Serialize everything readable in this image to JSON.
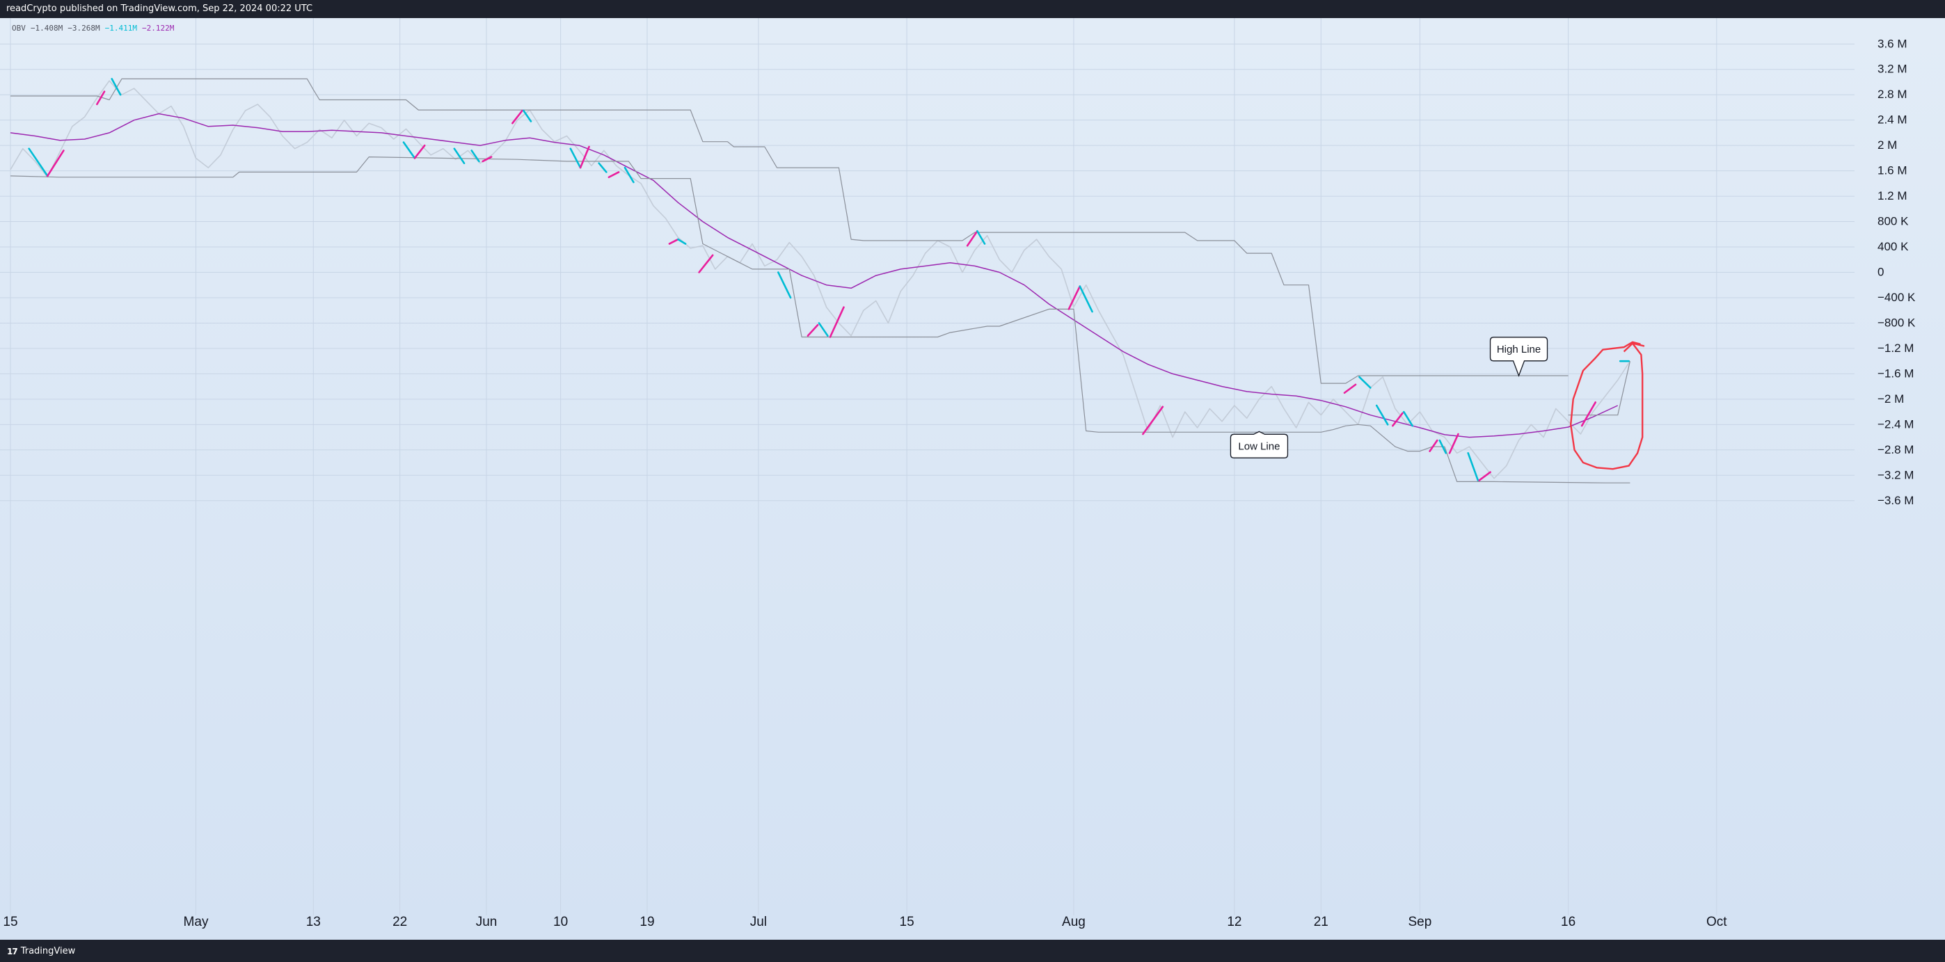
{
  "header": {
    "published_text": "readCrypto published on TradingView.com, Sep 22, 2024 00:22 UTC"
  },
  "legend": {
    "name": "OBV",
    "v1": "−1.408M",
    "v2": "−3.268M",
    "v3": "−1.411M",
    "v4": "−2.122M"
  },
  "footer": {
    "brand": "TradingView",
    "logo_mark": "17"
  },
  "colors": {
    "obv": "#c3ccd8",
    "signal": "#9c27b0",
    "channel": "#8a8f99",
    "segment_up": "#e91e9c",
    "segment_down": "#00bcd4",
    "highlight": "#f23645",
    "callout_border": "#131722"
  },
  "chart_data": {
    "type": "line",
    "title": "",
    "xlabel": "",
    "ylabel": "",
    "ylim": [
      -4.0,
      3.9
    ],
    "x_range": [
      0,
      150
    ],
    "y_ticks": [
      3.6,
      3.2,
      2.8,
      2.4,
      2.0,
      1.6,
      1.2,
      0.8,
      0.4,
      0,
      -0.4,
      -0.8,
      -1.2,
      -1.6,
      -2.0,
      -2.4,
      -2.8,
      -3.2,
      -3.6
    ],
    "y_tick_labels": [
      "3.6 M",
      "3.2 M",
      "2.8 M",
      "2.4 M",
      "2 M",
      "1.6 M",
      "1.2 M",
      "800 K",
      "400 K",
      "0",
      "−400 K",
      "−800 K",
      "−1.2 M",
      "−1.6 M",
      "−2 M",
      "−2.4 M",
      "−2.8 M",
      "−3.2 M",
      "−3.6 M"
    ],
    "x_ticks": [
      {
        "x": 0,
        "label": "15"
      },
      {
        "x": 15,
        "label": "May"
      },
      {
        "x": 24.5,
        "label": "13"
      },
      {
        "x": 31.5,
        "label": "22"
      },
      {
        "x": 38.5,
        "label": "Jun"
      },
      {
        "x": 44.5,
        "label": "10"
      },
      {
        "x": 51.5,
        "label": "19"
      },
      {
        "x": 60.5,
        "label": "Jul"
      },
      {
        "x": 72.5,
        "label": "15"
      },
      {
        "x": 86,
        "label": "Aug"
      },
      {
        "x": 99,
        "label": "12"
      },
      {
        "x": 106,
        "label": "21"
      },
      {
        "x": 114,
        "label": "Sep"
      },
      {
        "x": 126,
        "label": "16"
      },
      {
        "x": 138,
        "label": "Oct"
      }
    ],
    "annotations": [
      {
        "text": "Low Line",
        "x": 101,
        "y": -2.74,
        "anchor_y": -2.51,
        "pointer": "up"
      },
      {
        "text": "High Line",
        "x": 122,
        "y": -1.21,
        "anchor_y": -1.63,
        "pointer": "down"
      }
    ],
    "series": [
      {
        "role": "obv",
        "x": [
          0,
          1,
          2,
          3,
          4,
          5,
          6,
          7,
          8,
          9,
          10,
          11,
          12,
          13,
          14,
          15,
          16,
          17,
          18,
          19,
          20,
          21,
          22,
          23,
          24,
          25,
          26,
          27,
          28,
          29,
          30,
          31,
          32,
          33,
          34,
          35,
          36,
          37,
          38,
          39,
          40,
          41,
          42,
          43,
          44,
          45,
          46,
          47,
          48,
          49,
          50,
          51,
          52,
          53,
          54,
          55,
          56,
          57,
          58,
          59,
          60,
          61,
          62,
          63,
          64,
          65,
          66,
          67,
          68,
          69,
          70,
          71,
          72,
          73,
          74,
          75,
          76,
          77,
          78,
          79,
          80,
          81,
          82,
          83,
          84,
          85,
          86,
          87,
          88,
          89,
          90,
          91,
          92,
          93,
          94,
          95,
          96,
          97,
          98,
          99,
          100,
          101,
          102,
          103,
          104,
          105,
          106,
          107,
          108,
          109,
          110,
          111,
          112,
          113,
          114,
          115,
          116,
          117,
          118,
          119,
          120,
          121,
          122,
          123,
          124,
          125,
          126,
          127,
          128,
          129,
          130,
          131
        ],
        "y": [
          1.62,
          1.95,
          1.75,
          1.5,
          1.9,
          2.3,
          2.45,
          2.75,
          3.02,
          2.8,
          2.9,
          2.7,
          2.5,
          2.62,
          2.3,
          1.8,
          1.65,
          1.85,
          2.25,
          2.55,
          2.65,
          2.45,
          2.15,
          1.95,
          2.05,
          2.25,
          2.12,
          2.4,
          2.15,
          2.35,
          2.28,
          2.1,
          2.26,
          2.05,
          1.85,
          1.95,
          1.78,
          1.92,
          1.72,
          1.86,
          2.06,
          2.4,
          2.56,
          2.25,
          2.06,
          2.15,
          1.92,
          1.68,
          1.92,
          1.68,
          1.53,
          1.4,
          1.05,
          0.85,
          0.55,
          0.38,
          0.42,
          0.05,
          0.25,
          0.15,
          0.45,
          0.1,
          0.2,
          0.47,
          0.25,
          -0.05,
          -0.55,
          -0.8,
          -1.0,
          -0.6,
          -0.45,
          -0.8,
          -0.3,
          -0.05,
          0.3,
          0.5,
          0.4,
          0.0,
          0.35,
          0.58,
          0.2,
          0.0,
          0.35,
          0.52,
          0.25,
          0.05,
          -0.55,
          -0.2,
          -0.6,
          -0.95,
          -1.3,
          -1.9,
          -2.5,
          -2.1,
          -2.6,
          -2.2,
          -2.45,
          -2.15,
          -2.35,
          -2.1,
          -2.3,
          -2.0,
          -1.8,
          -2.15,
          -2.45,
          -2.05,
          -2.25,
          -2.0,
          -2.2,
          -2.4,
          -1.82,
          -1.65,
          -2.15,
          -2.4,
          -2.2,
          -2.5,
          -2.6,
          -2.85,
          -2.75,
          -3.0,
          -3.25,
          -3.05,
          -2.65,
          -2.4,
          -2.6,
          -2.15,
          -2.35,
          -2.55,
          -2.2,
          -1.95,
          -1.7,
          -1.4
        ]
      },
      {
        "role": "signal",
        "x": [
          0,
          2,
          4,
          6,
          8,
          10,
          12,
          14,
          16,
          18,
          20,
          22,
          24,
          26,
          28,
          30,
          32,
          34,
          36,
          38,
          40,
          42,
          44,
          46,
          48,
          50,
          52,
          54,
          56,
          58,
          60,
          62,
          64,
          66,
          68,
          70,
          72,
          74,
          76,
          78,
          80,
          82,
          84,
          86,
          88,
          90,
          92,
          94,
          96,
          98,
          100,
          102,
          104,
          106,
          108,
          110,
          112,
          114,
          116,
          118,
          120,
          122,
          124,
          126,
          128,
          130
        ],
        "y": [
          2.2,
          2.15,
          2.08,
          2.1,
          2.2,
          2.4,
          2.5,
          2.43,
          2.3,
          2.32,
          2.28,
          2.22,
          2.22,
          2.24,
          2.22,
          2.2,
          2.15,
          2.1,
          2.05,
          2.0,
          2.08,
          2.12,
          2.05,
          2.0,
          1.85,
          1.65,
          1.45,
          1.1,
          0.8,
          0.55,
          0.35,
          0.15,
          -0.05,
          -0.2,
          -0.25,
          -0.05,
          0.05,
          0.1,
          0.15,
          0.1,
          0.0,
          -0.2,
          -0.5,
          -0.75,
          -1.0,
          -1.25,
          -1.45,
          -1.6,
          -1.7,
          -1.8,
          -1.88,
          -1.92,
          -1.95,
          -2.02,
          -2.12,
          -2.25,
          -2.35,
          -2.45,
          -2.56,
          -2.6,
          -2.58,
          -2.55,
          -2.5,
          -2.44,
          -2.28,
          -2.1
        ]
      },
      {
        "role": "high-channel",
        "x": [
          0,
          7,
          8,
          9,
          24,
          24.5,
          25,
          32,
          33,
          55,
          56,
          58,
          58.5,
          61,
          62,
          67,
          68,
          69,
          77,
          78,
          95,
          96,
          99,
          100,
          102,
          103,
          105,
          106,
          107,
          108,
          109,
          110,
          122,
          126
        ],
        "y": [
          2.78,
          2.78,
          2.72,
          3.05,
          3.05,
          2.88,
          2.72,
          2.72,
          2.56,
          2.56,
          2.06,
          2.06,
          1.98,
          1.98,
          1.65,
          1.65,
          0.52,
          0.5,
          0.5,
          0.63,
          0.63,
          0.5,
          0.5,
          0.3,
          0.3,
          -0.2,
          -0.2,
          -1.75,
          -1.75,
          -1.75,
          -1.63,
          -1.63,
          -1.63,
          -1.63
        ]
      },
      {
        "role": "low-channel",
        "x": [
          0,
          4,
          18,
          18.5,
          28,
          29,
          41,
          45,
          50,
          51,
          55,
          56,
          60,
          63,
          64,
          75,
          76,
          79,
          80,
          84,
          86,
          87,
          88,
          106,
          107,
          108,
          109,
          110,
          112,
          113,
          114,
          115,
          116,
          117,
          118,
          119,
          120,
          129,
          131
        ],
        "y": [
          1.52,
          1.5,
          1.5,
          1.58,
          1.58,
          1.82,
          1.78,
          1.75,
          1.75,
          1.48,
          1.48,
          0.45,
          0.05,
          0.05,
          -1.02,
          -1.02,
          -0.95,
          -0.85,
          -0.85,
          -0.58,
          -0.58,
          -2.5,
          -2.52,
          -2.52,
          -2.48,
          -2.42,
          -2.4,
          -2.42,
          -2.75,
          -2.82,
          -2.82,
          -2.75,
          -2.75,
          -3.3,
          -3.3,
          -3.3,
          -3.3,
          -3.32,
          -3.32
        ]
      },
      {
        "role": "entry-channel",
        "x": [
          126,
          130,
          131
        ],
        "y": [
          -2.25,
          -2.25,
          -1.4
        ]
      }
    ],
    "segments": [
      {
        "c": "down",
        "x1": 1.5,
        "y1": 1.95,
        "x2": 3,
        "y2": 1.52
      },
      {
        "c": "up",
        "x1": 3,
        "y1": 1.52,
        "x2": 4.3,
        "y2": 1.92
      },
      {
        "c": "up",
        "x1": 7,
        "y1": 2.65,
        "x2": 7.6,
        "y2": 2.85
      },
      {
        "c": "down",
        "x1": 8.2,
        "y1": 3.05,
        "x2": 8.9,
        "y2": 2.8
      },
      {
        "c": "down",
        "x1": 31.8,
        "y1": 2.05,
        "x2": 32.7,
        "y2": 1.8
      },
      {
        "c": "up",
        "x1": 32.7,
        "y1": 1.8,
        "x2": 33.5,
        "y2": 2.0
      },
      {
        "c": "down",
        "x1": 35.9,
        "y1": 1.95,
        "x2": 36.7,
        "y2": 1.72
      },
      {
        "c": "down",
        "x1": 37.3,
        "y1": 1.92,
        "x2": 37.9,
        "y2": 1.75
      },
      {
        "c": "up",
        "x1": 38.2,
        "y1": 1.75,
        "x2": 38.9,
        "y2": 1.82
      },
      {
        "c": "up",
        "x1": 40.6,
        "y1": 2.35,
        "x2": 41.4,
        "y2": 2.55
      },
      {
        "c": "down",
        "x1": 41.5,
        "y1": 2.55,
        "x2": 42.1,
        "y2": 2.38
      },
      {
        "c": "down",
        "x1": 45.3,
        "y1": 1.95,
        "x2": 46.1,
        "y2": 1.65
      },
      {
        "c": "up",
        "x1": 46.1,
        "y1": 1.65,
        "x2": 46.8,
        "y2": 1.98
      },
      {
        "c": "down",
        "x1": 47.6,
        "y1": 1.72,
        "x2": 48.2,
        "y2": 1.58
      },
      {
        "c": "up",
        "x1": 48.4,
        "y1": 1.5,
        "x2": 49.2,
        "y2": 1.58
      },
      {
        "c": "down",
        "x1": 49.7,
        "y1": 1.65,
        "x2": 50.4,
        "y2": 1.42
      },
      {
        "c": "up",
        "x1": 53.3,
        "y1": 0.45,
        "x2": 54,
        "y2": 0.52
      },
      {
        "c": "down",
        "x1": 54,
        "y1": 0.52,
        "x2": 54.6,
        "y2": 0.45
      },
      {
        "c": "up",
        "x1": 55.7,
        "y1": 0.0,
        "x2": 56.8,
        "y2": 0.27
      },
      {
        "c": "down",
        "x1": 62.1,
        "y1": 0.0,
        "x2": 63.1,
        "y2": -0.4
      },
      {
        "c": "up",
        "x1": 64.5,
        "y1": -1.0,
        "x2": 65.3,
        "y2": -0.83
      },
      {
        "c": "down",
        "x1": 65.4,
        "y1": -0.8,
        "x2": 66.1,
        "y2": -1.0
      },
      {
        "c": "up",
        "x1": 66.3,
        "y1": -1.02,
        "x2": 67.4,
        "y2": -0.55
      },
      {
        "c": "up",
        "x1": 77.4,
        "y1": 0.42,
        "x2": 78.2,
        "y2": 0.65
      },
      {
        "c": "down",
        "x1": 78.2,
        "y1": 0.65,
        "x2": 78.8,
        "y2": 0.45
      },
      {
        "c": "up",
        "x1": 85.6,
        "y1": -0.58,
        "x2": 86.5,
        "y2": -0.22
      },
      {
        "c": "down",
        "x1": 86.5,
        "y1": -0.22,
        "x2": 87.5,
        "y2": -0.62
      },
      {
        "c": "up",
        "x1": 91.6,
        "y1": -2.55,
        "x2": 93.2,
        "y2": -2.12
      },
      {
        "c": "up",
        "x1": 107.9,
        "y1": -1.9,
        "x2": 108.8,
        "y2": -1.77
      },
      {
        "c": "down",
        "x1": 109.1,
        "y1": -1.65,
        "x2": 110,
        "y2": -1.82
      },
      {
        "c": "down",
        "x1": 110.5,
        "y1": -2.1,
        "x2": 111.4,
        "y2": -2.4
      },
      {
        "c": "up",
        "x1": 111.8,
        "y1": -2.42,
        "x2": 112.6,
        "y2": -2.22
      },
      {
        "c": "down",
        "x1": 112.7,
        "y1": -2.2,
        "x2": 113.4,
        "y2": -2.42
      },
      {
        "c": "up",
        "x1": 114.8,
        "y1": -2.82,
        "x2": 115.4,
        "y2": -2.65
      },
      {
        "c": "down",
        "x1": 115.6,
        "y1": -2.65,
        "x2": 116.1,
        "y2": -2.85
      },
      {
        "c": "up",
        "x1": 116.4,
        "y1": -2.85,
        "x2": 117.1,
        "y2": -2.55
      },
      {
        "c": "down",
        "x1": 117.9,
        "y1": -2.85,
        "x2": 118.7,
        "y2": -3.28
      },
      {
        "c": "up",
        "x1": 118.8,
        "y1": -3.28,
        "x2": 119.7,
        "y2": -3.15
      },
      {
        "c": "up",
        "x1": 127.1,
        "y1": -2.42,
        "x2": 128.2,
        "y2": -2.05
      },
      {
        "c": "down",
        "x1": 130.2,
        "y1": -1.4,
        "x2": 130.9,
        "y2": -1.4
      }
    ],
    "highlight_circle": {
      "points": [
        [
          126.4,
          -2.0
        ],
        [
          127.2,
          -1.55
        ],
        [
          128.2,
          -1.35
        ],
        [
          128.8,
          -1.22
        ],
        [
          129.6,
          -1.2
        ],
        [
          130.5,
          -1.18
        ],
        [
          131.2,
          -1.1
        ],
        [
          131.8,
          -1.13
        ],
        [
          131.2,
          -1.12
        ],
        [
          131.9,
          -1.3
        ],
        [
          132,
          -1.6
        ],
        [
          132,
          -2.3
        ],
        [
          132,
          -2.6
        ],
        [
          131.6,
          -2.85
        ],
        [
          130.9,
          -3.05
        ],
        [
          129.6,
          -3.1
        ],
        [
          128.3,
          -3.08
        ],
        [
          127.2,
          -3.0
        ],
        [
          126.5,
          -2.8
        ],
        [
          126.2,
          -2.4
        ],
        [
          126.4,
          -2.0
        ]
      ],
      "arrow": [
        [
          131.2,
          -1.12
        ],
        [
          130.5,
          -1.25
        ],
        [
          131.2,
          -1.12
        ],
        [
          132.1,
          -1.16
        ]
      ]
    }
  }
}
